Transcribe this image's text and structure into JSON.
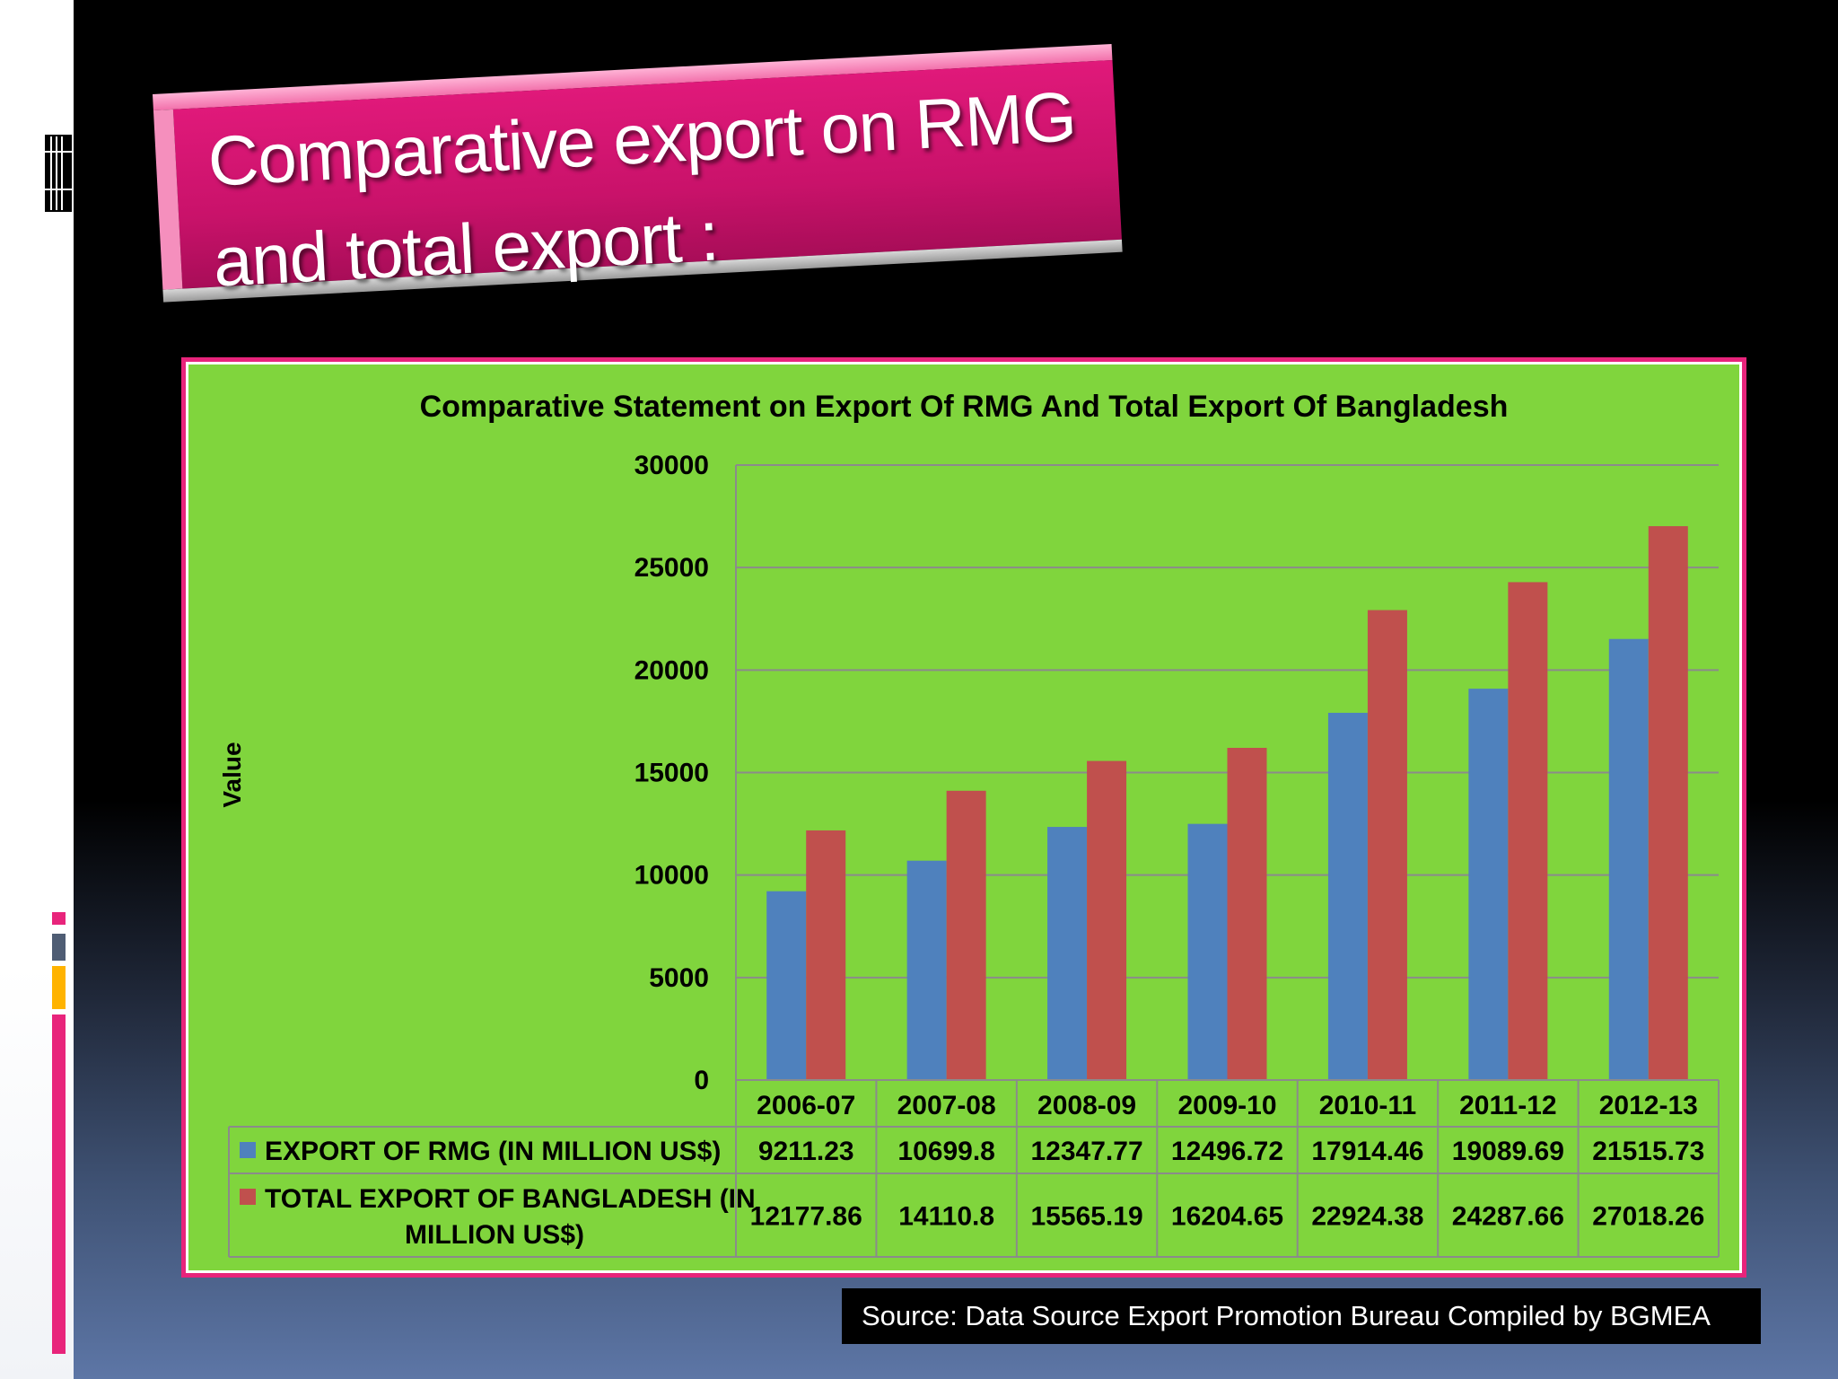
{
  "slide": {
    "title_line1": "Comparative export on  RMG",
    "title_line2": "and total export :",
    "source": "Source: Data Source Export Promotion Bureau  Compiled by BGMEA"
  },
  "colors": {
    "rmg": "#4f81bd",
    "total": "#c0504d",
    "chart_bg": "#80d53d",
    "accent_pink": "#e8247b",
    "accent_slate": "#4f5d74",
    "accent_gold": "#ffb300"
  },
  "icons": [
    "grid-icon"
  ],
  "chart_data": {
    "type": "bar",
    "title": "Comparative Statement on Export Of RMG And Total Export Of Bangladesh",
    "ylabel": "Value",
    "xlabel": "",
    "ylim": [
      0,
      30000
    ],
    "yticks": [
      "0",
      "5000",
      "10000",
      "15000",
      "20000",
      "25000",
      "30000"
    ],
    "grid": true,
    "legend": "data table below chart",
    "categories": [
      "2006-07",
      "2007-08",
      "2008-09",
      "2009-10",
      "2010-11",
      "2011-12",
      "2012-13"
    ],
    "series": [
      {
        "name": "EXPORT OF RMG (IN MILLION US$)",
        "values": [
          9211.23,
          10699.8,
          12347.77,
          12496.72,
          17914.46,
          19089.69,
          21515.73
        ],
        "labels": [
          "9211.23",
          "10699.8",
          "12347.77",
          "12496.72",
          "17914.46",
          "19089.69",
          "21515.73"
        ],
        "color": "#4f81bd"
      },
      {
        "name": "TOTAL EXPORT OF BANGLADESH  (IN MILLION US$)",
        "name_lines": [
          "TOTAL EXPORT OF BANGLADESH  (IN",
          "MILLION US$)"
        ],
        "values": [
          12177.86,
          14110.8,
          15565.19,
          16204.65,
          22924.38,
          24287.66,
          27018.26
        ],
        "labels": [
          "12177.86",
          "14110.8",
          "15565.19",
          "16204.65",
          "22924.38",
          "24287.66",
          "27018.26"
        ],
        "color": "#c0504d"
      }
    ]
  }
}
